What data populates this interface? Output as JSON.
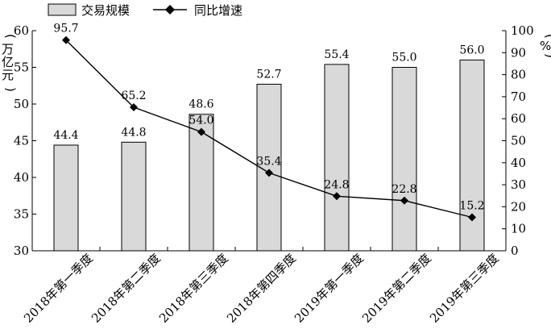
{
  "chart_data": {
    "type": "bar",
    "categories": [
      "2018年第一季度",
      "2018年第二季度",
      "2018年第三季度",
      "2018年第四季度",
      "2019年第一季度",
      "2019年第二季度",
      "2019年第三季度"
    ],
    "series": [
      {
        "name": "交易规模",
        "type": "bar",
        "axis": "left",
        "values": [
          44.4,
          44.8,
          48.6,
          52.7,
          55.4,
          55.0,
          56.0
        ],
        "color": "#d9d9d9"
      },
      {
        "name": "同比增速",
        "type": "line",
        "axis": "right",
        "values": [
          95.7,
          65.2,
          54.0,
          35.4,
          24.8,
          22.8,
          15.2
        ],
        "color": "#000000"
      }
    ],
    "ylabel_left": "万亿元",
    "ylabel_right": "%",
    "ylim_left": [
      30,
      60
    ],
    "yticks_left": [
      30,
      35,
      40,
      45,
      50,
      55,
      60
    ],
    "ylim_right": [
      0,
      100
    ],
    "yticks_right": [
      0,
      10,
      20,
      30,
      40,
      50,
      60,
      70,
      80,
      90,
      100
    ],
    "legend": "top-left",
    "grid": false
  }
}
